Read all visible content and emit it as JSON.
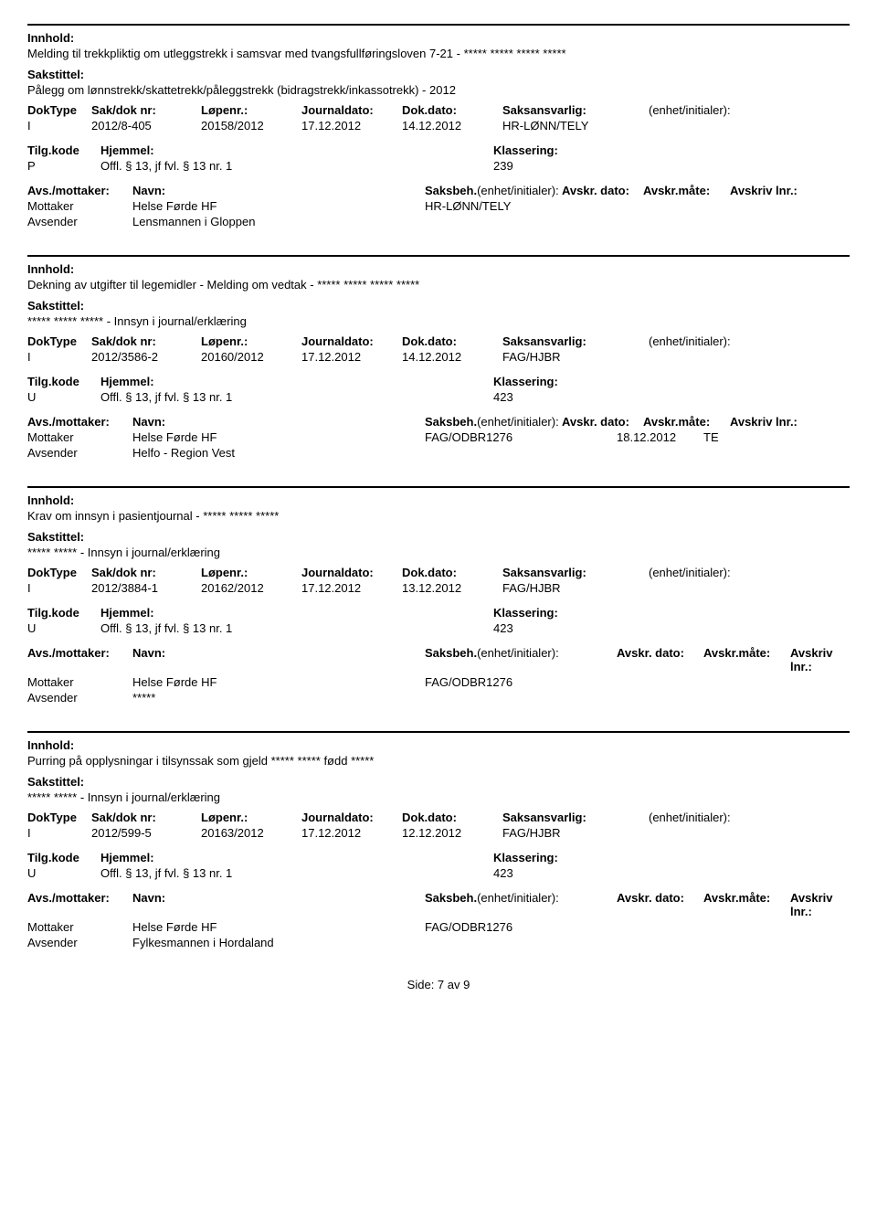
{
  "labels": {
    "innhold": "Innhold:",
    "sakstittel": "Sakstittel:",
    "doktype": "DokType",
    "sakdoknr": "Sak/dok nr:",
    "lopenr": "Løpenr.:",
    "journaldato": "Journaldato:",
    "dokdato": "Dok.dato:",
    "saksansvarlig": "Saksansvarlig:",
    "enhetinitialer": "(enhet/initialer):",
    "tilgkode": "Tilg.kode",
    "hjemmel": "Hjemmel:",
    "klassering": "Klassering:",
    "avsmottaker": "Avs./mottaker:",
    "navn": "Navn:",
    "saksbeh": "Saksbeh.",
    "saksbeh_paren": "(enhet/initialer):",
    "avskrdato": "Avskr. dato:",
    "avskrmate": "Avskr.måte:",
    "avskrivlnr": "Avskriv lnr.:",
    "mottaker": "Mottaker",
    "avsender": "Avsender"
  },
  "records": [
    {
      "innhold": "Melding til trekkpliktig om utleggstrekk i samsvar med tvangsfullføringsloven 7-21 - ***** ***** ***** *****",
      "sakstittel": "Pålegg om lønnstrekk/skattetrekk/påleggstrekk (bidragstrekk/inkassotrekk) - 2012",
      "doktype": "I",
      "sakdok": "2012/8-405",
      "lopenr": "20158/2012",
      "journaldato": "17.12.2012",
      "dokdato": "14.12.2012",
      "saksansvarlig": "HR-LØNN/TELY",
      "tilgkode": "P",
      "hjemmel": "Offl. § 13, jf fvl. § 13 nr. 1",
      "klassering_value": "239",
      "show_party_headers": false,
      "mottaker_navn": "Helse Førde HF",
      "mottaker_saksbeh": "HR-LØNN/TELY",
      "mottaker_avskrdato": "",
      "mottaker_avskrmate": "",
      "avsender_navn": "Lensmannen i Gloppen"
    },
    {
      "innhold": "Dekning av utgifter til legemidler - Melding om vedtak - ***** ***** ***** *****",
      "sakstittel": "***** ***** ***** - Innsyn i journal/erklæring",
      "doktype": "I",
      "sakdok": "2012/3586-2",
      "lopenr": "20160/2012",
      "journaldato": "17.12.2012",
      "dokdato": "14.12.2012",
      "saksansvarlig": "FAG/HJBR",
      "tilgkode": "U",
      "hjemmel": "Offl. § 13, jf fvl. § 13 nr. 1",
      "klassering_value": "423",
      "show_party_headers": false,
      "mottaker_navn": "Helse Førde HF",
      "mottaker_saksbeh": "FAG/ODBR1276",
      "mottaker_avskrdato": "18.12.2012",
      "mottaker_avskrmate": "TE",
      "avsender_navn": "Helfo - Region Vest"
    },
    {
      "innhold": "Krav om innsyn i pasientjournal - ***** ***** *****",
      "sakstittel": "***** ***** - Innsyn i journal/erklæring",
      "doktype": "I",
      "sakdok": "2012/3884-1",
      "lopenr": "20162/2012",
      "journaldato": "17.12.2012",
      "dokdato": "13.12.2012",
      "saksansvarlig": "FAG/HJBR",
      "tilgkode": "U",
      "hjemmel": "Offl. § 13, jf fvl. § 13 nr. 1",
      "klassering_value": "423",
      "show_party_headers": true,
      "mottaker_navn": "Helse Førde HF",
      "mottaker_saksbeh": "FAG/ODBR1276",
      "mottaker_avskrdato": "",
      "mottaker_avskrmate": "",
      "avsender_navn": "*****"
    },
    {
      "innhold": "Purring på opplysningar i tilsynssak som gjeld ***** ***** fødd *****",
      "sakstittel": "***** ***** - Innsyn i journal/erklæring",
      "doktype": "I",
      "sakdok": "2012/599-5",
      "lopenr": "20163/2012",
      "journaldato": "17.12.2012",
      "dokdato": "12.12.2012",
      "saksansvarlig": "FAG/HJBR",
      "tilgkode": "U",
      "hjemmel": "Offl. § 13, jf fvl. § 13 nr. 1",
      "klassering_value": "423",
      "show_party_headers": true,
      "mottaker_navn": "Helse Førde HF",
      "mottaker_saksbeh": "FAG/ODBR1276",
      "mottaker_avskrdato": "",
      "mottaker_avskrmate": "",
      "avsender_navn": "Fylkesmannen i Hordaland"
    }
  ],
  "footer": "Side: 7 av 9",
  "colors": {
    "text": "#000000",
    "background": "#ffffff",
    "rule": "#000000"
  }
}
